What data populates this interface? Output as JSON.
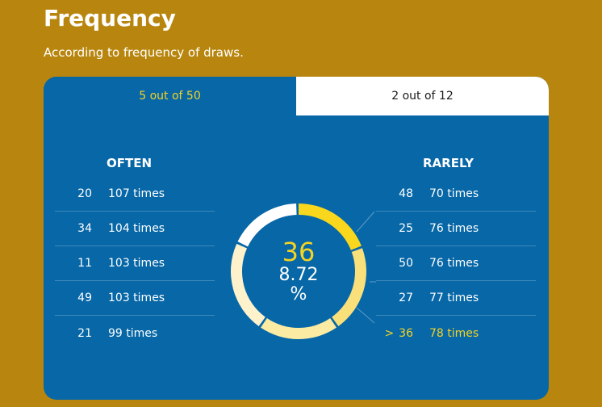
{
  "header": {
    "title": "Frequency",
    "subtitle": "According to frequency of draws."
  },
  "tabs": [
    {
      "label": "5 out of 50",
      "active": true
    },
    {
      "label": "2 out of 12",
      "active": false
    }
  ],
  "often": {
    "heading": "OFTEN",
    "rows": [
      {
        "number": "20",
        "times": "107 times"
      },
      {
        "number": "34",
        "times": "104 times"
      },
      {
        "number": "11",
        "times": "103 times"
      },
      {
        "number": "49",
        "times": "103 times"
      },
      {
        "number": "21",
        "times": "99 times"
      }
    ]
  },
  "rarely": {
    "heading": "RARELY",
    "rows": [
      {
        "number": "48",
        "times": "70 times"
      },
      {
        "number": "25",
        "times": "76 times"
      },
      {
        "number": "50",
        "times": "76 times"
      },
      {
        "number": "27",
        "times": "77 times"
      },
      {
        "number": "36",
        "times": "78 times",
        "highlighted": true
      }
    ]
  },
  "selection_marker": ">",
  "donut": {
    "center_number": "36",
    "center_percent_value": "8.72",
    "center_percent_sign": "%"
  },
  "colors": {
    "background": "#b8860e",
    "card": "#0767a7",
    "accent": "#f5d323",
    "white": "#ffffff"
  }
}
